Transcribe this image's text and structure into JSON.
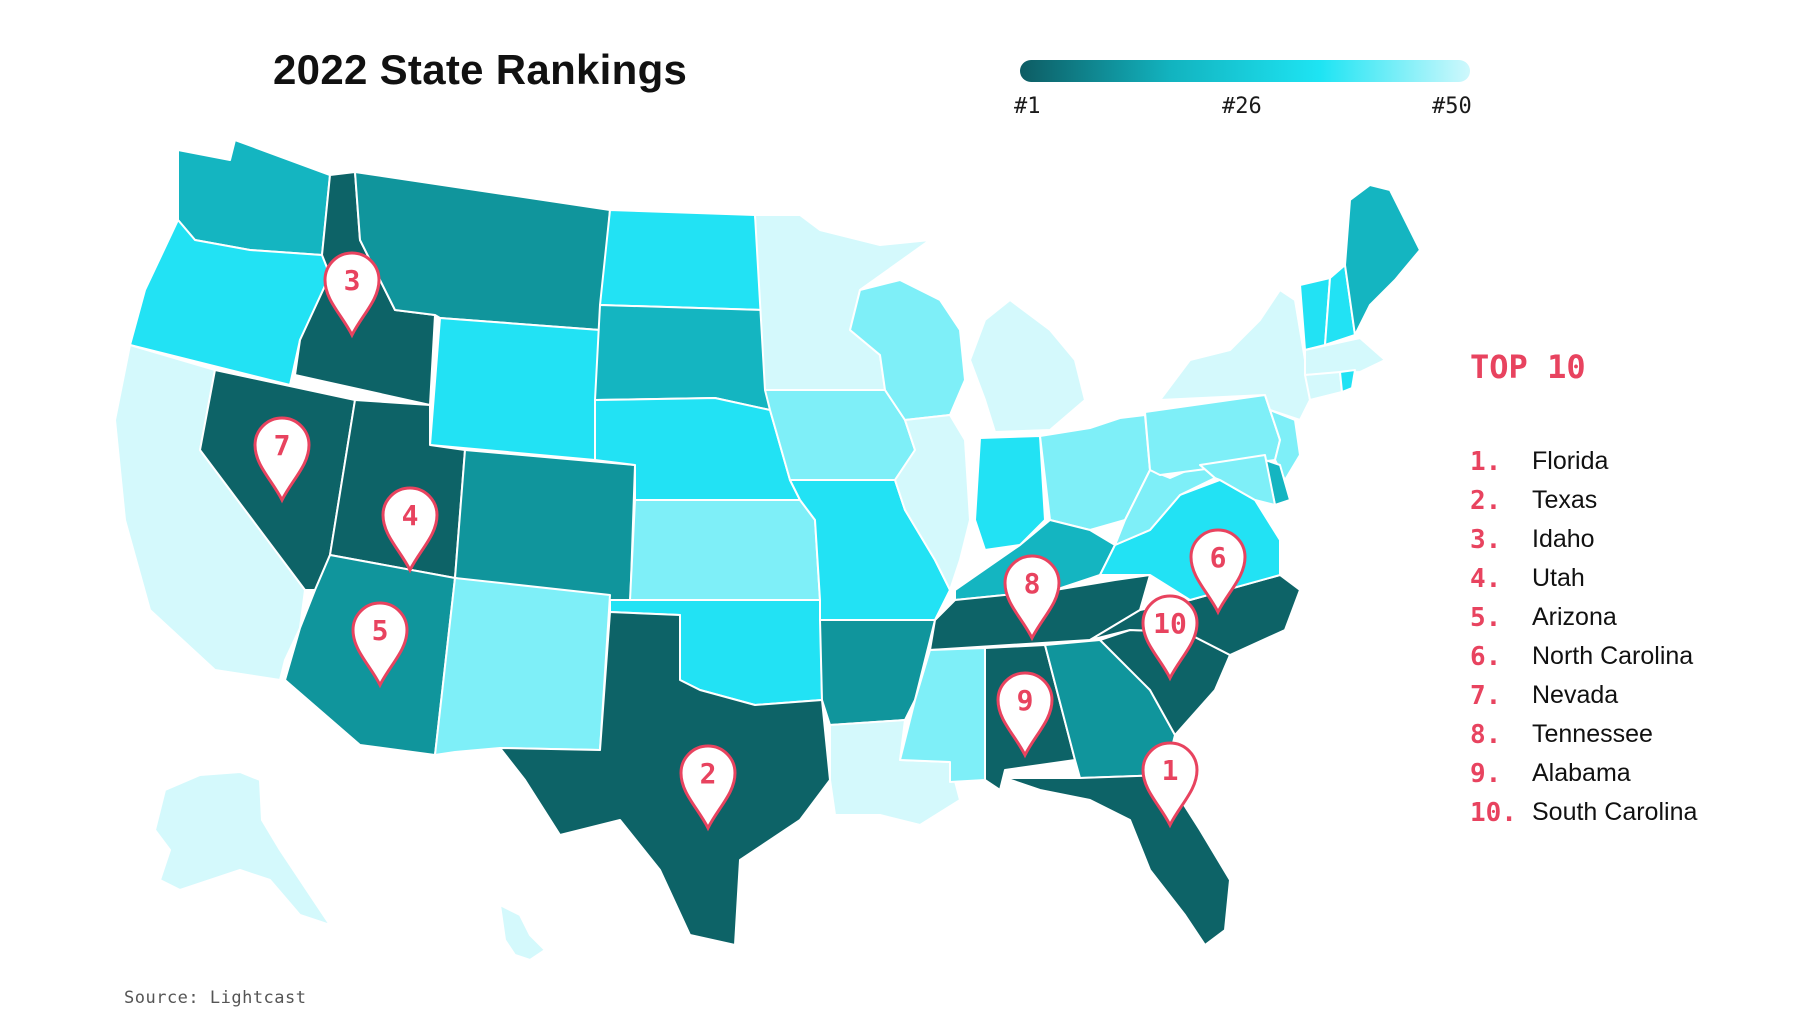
{
  "title": "2022 State Rankings",
  "legend": {
    "ticks": [
      "#1",
      "#26",
      "#50"
    ],
    "colors": [
      "#0d5c63",
      "#12b3bf",
      "#1ee4f3",
      "#cff8fc"
    ]
  },
  "top10": {
    "heading": "TOP 10",
    "items": [
      {
        "num": "1.",
        "name": "Florida"
      },
      {
        "num": "2.",
        "name": "Texas"
      },
      {
        "num": "3.",
        "name": "Idaho"
      },
      {
        "num": "4.",
        "name": "Utah"
      },
      {
        "num": "5.",
        "name": "Arizona"
      },
      {
        "num": "6.",
        "name": "North Carolina"
      },
      {
        "num": "7.",
        "name": "Nevada"
      },
      {
        "num": "8.",
        "name": "Tennessee"
      },
      {
        "num": "9.",
        "name": "Alabama"
      },
      {
        "num": "10.",
        "name": "South Carolina"
      }
    ]
  },
  "markers": [
    "1",
    "2",
    "3",
    "4",
    "5",
    "6",
    "7",
    "8",
    "9",
    "10"
  ],
  "source": "Source: Lightcast",
  "colors": {
    "accent": "#e8435f",
    "rank_dark": "#0d6367",
    "rank_mid_dark": "#10959c",
    "rank_mid": "#14b5c1",
    "rank_bright": "#22e2f4",
    "rank_light": "#7eeff8",
    "rank_pale": "#d4f9fc"
  }
}
